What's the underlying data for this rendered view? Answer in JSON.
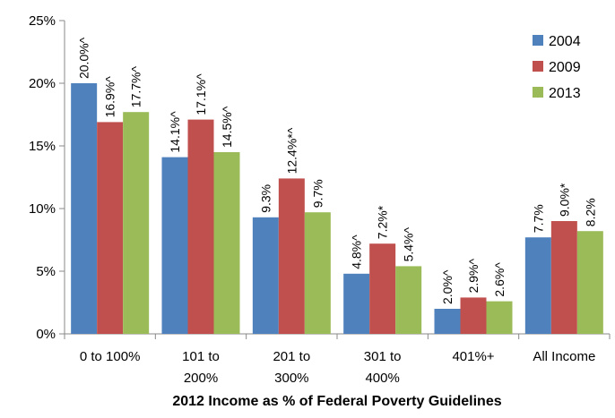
{
  "chart_data": {
    "type": "bar",
    "x_label": "2012 Income as % of Federal Poverty Guidelines",
    "categories": [
      "0 to 100%",
      "101 to\n200%",
      "201 to\n300%",
      "301 to\n400%",
      "401%+",
      "All Income"
    ],
    "series": [
      {
        "name": "2004",
        "color": "#4f81bd",
        "values": [
          20.0,
          14.1,
          9.3,
          4.8,
          2.0,
          7.7
        ],
        "value_labels": [
          "20.0%^",
          "14.1%^",
          "9.3%",
          "4.8%^",
          "2.0%^",
          "7.7%"
        ]
      },
      {
        "name": "2009",
        "color": "#c0504d",
        "values": [
          16.9,
          17.1,
          12.4,
          7.2,
          2.9,
          9.0
        ],
        "value_labels": [
          "16.9%^",
          "17.1%^",
          "12.4%*^",
          "7.2%*",
          "2.9%^",
          "9.0%*"
        ]
      },
      {
        "name": "2013",
        "color": "#9bbb59",
        "values": [
          17.7,
          14.5,
          9.7,
          5.4,
          2.6,
          8.2
        ],
        "value_labels": [
          "17.7%^",
          "14.5%^",
          "9.7%",
          "5.4%^",
          "2.6%^",
          "8.2%"
        ]
      }
    ],
    "ylim": [
      0,
      25
    ],
    "yticks": [
      {
        "value": 0,
        "label": "0%"
      },
      {
        "value": 5,
        "label": "5%"
      },
      {
        "value": 10,
        "label": "10%"
      },
      {
        "value": 15,
        "label": "15%"
      },
      {
        "value": 20,
        "label": "20%"
      },
      {
        "value": 25,
        "label": "25%"
      }
    ],
    "grid": false,
    "legend": "top-right"
  }
}
